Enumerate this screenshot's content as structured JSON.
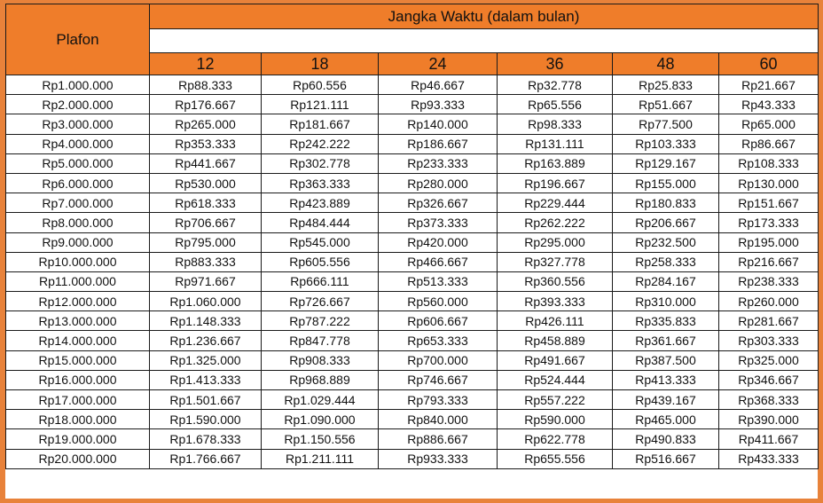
{
  "header": {
    "plafon_label": "Plafon",
    "term_label": "Jangka Waktu (dalam bulan)",
    "months": [
      "12",
      "18",
      "24",
      "36",
      "48",
      "60"
    ]
  },
  "rows": [
    [
      "Rp1.000.000",
      "Rp88.333",
      "Rp60.556",
      "Rp46.667",
      "Rp32.778",
      "Rp25.833",
      "Rp21.667"
    ],
    [
      "Rp2.000.000",
      "Rp176.667",
      "Rp121.111",
      "Rp93.333",
      "Rp65.556",
      "Rp51.667",
      "Rp43.333"
    ],
    [
      "Rp3.000.000",
      "Rp265.000",
      "Rp181.667",
      "Rp140.000",
      "Rp98.333",
      "Rp77.500",
      "Rp65.000"
    ],
    [
      "Rp4.000.000",
      "Rp353.333",
      "Rp242.222",
      "Rp186.667",
      "Rp131.111",
      "Rp103.333",
      "Rp86.667"
    ],
    [
      "Rp5.000.000",
      "Rp441.667",
      "Rp302.778",
      "Rp233.333",
      "Rp163.889",
      "Rp129.167",
      "Rp108.333"
    ],
    [
      "Rp6.000.000",
      "Rp530.000",
      "Rp363.333",
      "Rp280.000",
      "Rp196.667",
      "Rp155.000",
      "Rp130.000"
    ],
    [
      "Rp7.000.000",
      "Rp618.333",
      "Rp423.889",
      "Rp326.667",
      "Rp229.444",
      "Rp180.833",
      "Rp151.667"
    ],
    [
      "Rp8.000.000",
      "Rp706.667",
      "Rp484.444",
      "Rp373.333",
      "Rp262.222",
      "Rp206.667",
      "Rp173.333"
    ],
    [
      "Rp9.000.000",
      "Rp795.000",
      "Rp545.000",
      "Rp420.000",
      "Rp295.000",
      "Rp232.500",
      "Rp195.000"
    ],
    [
      "Rp10.000.000",
      "Rp883.333",
      "Rp605.556",
      "Rp466.667",
      "Rp327.778",
      "Rp258.333",
      "Rp216.667"
    ],
    [
      "Rp11.000.000",
      "Rp971.667",
      "Rp666.111",
      "Rp513.333",
      "Rp360.556",
      "Rp284.167",
      "Rp238.333"
    ],
    [
      "Rp12.000.000",
      "Rp1.060.000",
      "Rp726.667",
      "Rp560.000",
      "Rp393.333",
      "Rp310.000",
      "Rp260.000"
    ],
    [
      "Rp13.000.000",
      "Rp1.148.333",
      "Rp787.222",
      "Rp606.667",
      "Rp426.111",
      "Rp335.833",
      "Rp281.667"
    ],
    [
      "Rp14.000.000",
      "Rp1.236.667",
      "Rp847.778",
      "Rp653.333",
      "Rp458.889",
      "Rp361.667",
      "Rp303.333"
    ],
    [
      "Rp15.000.000",
      "Rp1.325.000",
      "Rp908.333",
      "Rp700.000",
      "Rp491.667",
      "Rp387.500",
      "Rp325.000"
    ],
    [
      "Rp16.000.000",
      "Rp1.413.333",
      "Rp968.889",
      "Rp746.667",
      "Rp524.444",
      "Rp413.333",
      "Rp346.667"
    ],
    [
      "Rp17.000.000",
      "Rp1.501.667",
      "Rp1.029.444",
      "Rp793.333",
      "Rp557.222",
      "Rp439.167",
      "Rp368.333"
    ],
    [
      "Rp18.000.000",
      "Rp1.590.000",
      "Rp1.090.000",
      "Rp840.000",
      "Rp590.000",
      "Rp465.000",
      "Rp390.000"
    ],
    [
      "Rp19.000.000",
      "Rp1.678.333",
      "Rp1.150.556",
      "Rp886.667",
      "Rp622.778",
      "Rp490.833",
      "Rp411.667"
    ],
    [
      "Rp20.000.000",
      "Rp1.766.667",
      "Rp1.211.111",
      "Rp933.333",
      "Rp655.556",
      "Rp516.667",
      "Rp433.333"
    ]
  ],
  "colors": {
    "header_orange": "#ef7d2a",
    "border_orange": "#e8823a",
    "grid": "#1a1a1a"
  }
}
